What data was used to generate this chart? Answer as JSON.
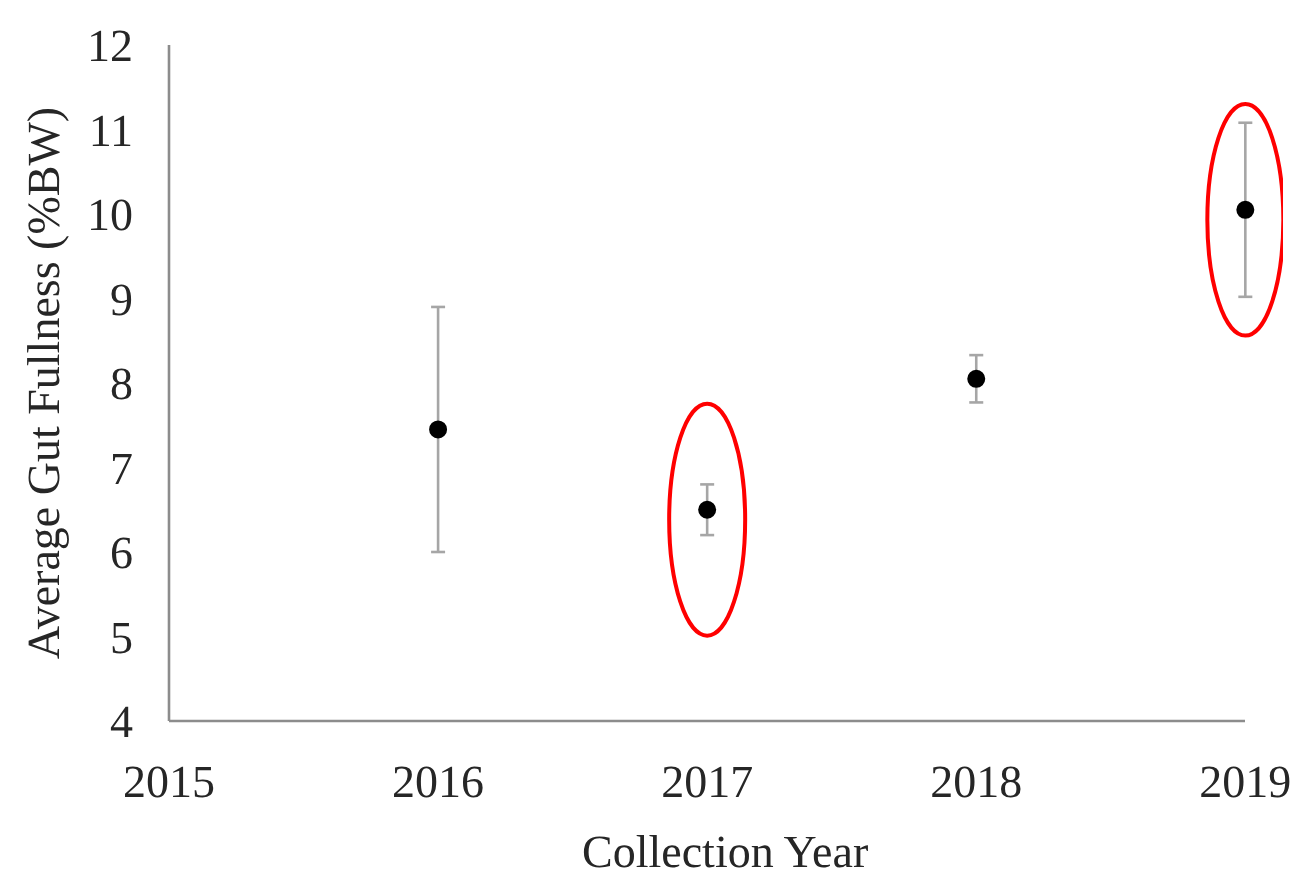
{
  "chart_data": {
    "type": "scatter",
    "xlabel": "Collection Year",
    "ylabel": "Average Gut Fullness (%BW)",
    "x": [
      2016,
      2017,
      2018,
      2019
    ],
    "series": [
      {
        "color": "#000000",
        "values": [
          7.45,
          6.5,
          8.05,
          10.05
        ],
        "errors": [
          1.45,
          0.3,
          0.28,
          1.03
        ]
      }
    ],
    "xlim": [
      2015,
      2019
    ],
    "xticks": [
      2015,
      2016,
      2017,
      2018,
      2019
    ],
    "ylim": [
      4,
      12
    ],
    "yticks": [
      4,
      5,
      6,
      7,
      8,
      9,
      10,
      11,
      12
    ],
    "grid": false,
    "marker": "circle"
  }
}
